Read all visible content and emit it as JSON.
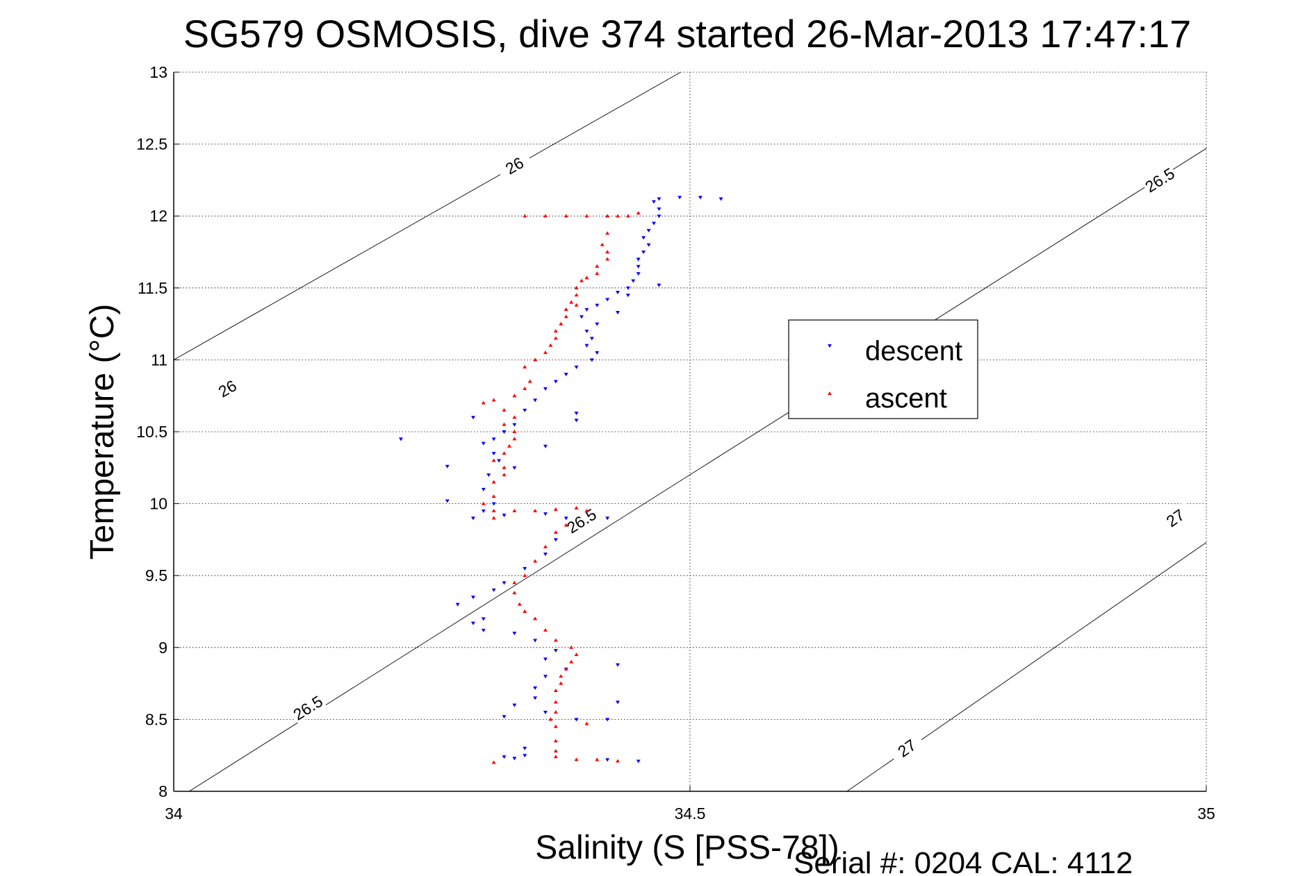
{
  "chart_data": {
    "type": "scatter",
    "title": "SG579 OSMOSIS, dive 374 started 26-Mar-2013 17:47:17",
    "xlabel": "Salinity (S [PSS-78])",
    "ylabel": "Temperature (°C)",
    "footer": "Serial #: 0204  CAL: 4112",
    "xlim": [
      34,
      35
    ],
    "ylim": [
      8,
      13
    ],
    "xticks": [
      "34",
      "34.5",
      "35"
    ],
    "xtick_values": [
      34,
      34.5,
      35
    ],
    "yticks": [
      "8",
      "8.5",
      "9",
      "9.5",
      "10",
      "10.5",
      "11",
      "11.5",
      "12",
      "12.5",
      "13"
    ],
    "ytick_values": [
      8,
      8.5,
      9,
      9.5,
      10,
      10.5,
      11,
      11.5,
      12,
      12.5,
      13
    ],
    "grid": true,
    "legend": {
      "placement": "center-right",
      "entries": [
        "descent",
        "ascent"
      ]
    },
    "density_contours": [
      {
        "label": "26",
        "points": [
          [
            34.0,
            11.0
          ],
          [
            34.491,
            13.0
          ]
        ],
        "label_at": [
          [
            34.33,
            12.35
          ],
          [
            34.052,
            10.8
          ]
        ]
      },
      {
        "label": "26.5",
        "points": [
          [
            34.015,
            8.0
          ],
          [
            35.0,
            12.47
          ]
        ],
        "label_at": [
          [
            34.13,
            8.58
          ],
          [
            34.395,
            9.88
          ],
          [
            34.955,
            12.25
          ]
        ]
      },
      {
        "label": "27",
        "points": [
          [
            34.652,
            8.0
          ],
          [
            35.0,
            9.73
          ]
        ],
        "label_at": [
          [
            34.71,
            8.3
          ],
          [
            34.97,
            9.9
          ]
        ]
      }
    ],
    "series": [
      {
        "name": "descent",
        "color": "#0000ff",
        "marker": "triangle-down",
        "points": [
          [
            34.53,
            12.12
          ],
          [
            34.51,
            12.13
          ],
          [
            34.49,
            12.13
          ],
          [
            34.47,
            12.12
          ],
          [
            34.465,
            12.1
          ],
          [
            34.47,
            12.05
          ],
          [
            34.47,
            12.0
          ],
          [
            34.465,
            11.95
          ],
          [
            34.46,
            11.9
          ],
          [
            34.455,
            11.85
          ],
          [
            34.46,
            11.8
          ],
          [
            34.455,
            11.75
          ],
          [
            34.45,
            11.7
          ],
          [
            34.45,
            11.65
          ],
          [
            34.45,
            11.6
          ],
          [
            34.445,
            11.55
          ],
          [
            34.47,
            11.52
          ],
          [
            34.44,
            11.5
          ],
          [
            34.43,
            11.47
          ],
          [
            34.44,
            11.45
          ],
          [
            34.42,
            11.42
          ],
          [
            34.41,
            11.38
          ],
          [
            34.4,
            11.35
          ],
          [
            34.43,
            11.33
          ],
          [
            34.395,
            11.3
          ],
          [
            34.41,
            11.25
          ],
          [
            34.4,
            11.2
          ],
          [
            34.405,
            11.15
          ],
          [
            34.4,
            11.1
          ],
          [
            34.41,
            11.05
          ],
          [
            34.405,
            11.0
          ],
          [
            34.39,
            10.95
          ],
          [
            34.38,
            10.9
          ],
          [
            34.37,
            10.85
          ],
          [
            34.36,
            10.8
          ],
          [
            34.35,
            10.72
          ],
          [
            34.34,
            10.65
          ],
          [
            34.39,
            10.58
          ],
          [
            34.33,
            10.55
          ],
          [
            34.32,
            10.5
          ],
          [
            34.31,
            10.45
          ],
          [
            34.3,
            10.42
          ],
          [
            34.36,
            10.4
          ],
          [
            34.31,
            10.35
          ],
          [
            34.315,
            10.3
          ],
          [
            34.33,
            10.25
          ],
          [
            34.305,
            10.2
          ],
          [
            34.3,
            10.1
          ],
          [
            34.31,
            10.0
          ],
          [
            34.3,
            9.95
          ],
          [
            34.32,
            9.92
          ],
          [
            34.29,
            9.9
          ],
          [
            34.36,
            9.93
          ],
          [
            34.38,
            9.9
          ],
          [
            34.42,
            9.9
          ],
          [
            34.37,
            9.75
          ],
          [
            34.36,
            9.65
          ],
          [
            34.34,
            9.55
          ],
          [
            34.32,
            9.45
          ],
          [
            34.31,
            9.4
          ],
          [
            34.29,
            9.35
          ],
          [
            34.3,
            9.2
          ],
          [
            34.29,
            9.17
          ],
          [
            34.3,
            9.12
          ],
          [
            34.33,
            9.1
          ],
          [
            34.35,
            9.05
          ],
          [
            34.37,
            8.98
          ],
          [
            34.36,
            8.92
          ],
          [
            34.43,
            8.88
          ],
          [
            34.38,
            8.85
          ],
          [
            34.36,
            8.8
          ],
          [
            34.35,
            8.72
          ],
          [
            34.35,
            8.65
          ],
          [
            34.33,
            8.6
          ],
          [
            34.43,
            8.62
          ],
          [
            34.36,
            8.55
          ],
          [
            34.32,
            8.52
          ],
          [
            34.39,
            8.5
          ],
          [
            34.42,
            8.5
          ],
          [
            34.34,
            8.3
          ],
          [
            34.34,
            8.25
          ],
          [
            34.33,
            8.23
          ],
          [
            34.32,
            8.24
          ],
          [
            34.42,
            8.22
          ],
          [
            34.45,
            8.21
          ],
          [
            34.22,
            10.45
          ],
          [
            34.265,
            10.26
          ],
          [
            34.265,
            10.02
          ],
          [
            34.275,
            9.3
          ],
          [
            34.29,
            10.6
          ],
          [
            34.39,
            10.63
          ]
        ]
      },
      {
        "name": "ascent",
        "color": "#ff0000",
        "marker": "triangle-up",
        "points": [
          [
            34.34,
            12.0
          ],
          [
            34.36,
            12.0
          ],
          [
            34.38,
            12.0
          ],
          [
            34.4,
            12.0
          ],
          [
            34.42,
            12.0
          ],
          [
            34.43,
            12.0
          ],
          [
            34.44,
            12.0
          ],
          [
            34.45,
            12.02
          ],
          [
            34.42,
            11.88
          ],
          [
            34.415,
            11.8
          ],
          [
            34.42,
            11.75
          ],
          [
            34.42,
            11.7
          ],
          [
            34.41,
            11.65
          ],
          [
            34.41,
            11.6
          ],
          [
            34.4,
            11.57
          ],
          [
            34.395,
            11.55
          ],
          [
            34.39,
            11.5
          ],
          [
            34.39,
            11.45
          ],
          [
            34.385,
            11.4
          ],
          [
            34.39,
            11.38
          ],
          [
            34.38,
            11.35
          ],
          [
            34.38,
            11.3
          ],
          [
            34.375,
            11.25
          ],
          [
            34.37,
            11.2
          ],
          [
            34.37,
            11.15
          ],
          [
            34.365,
            11.1
          ],
          [
            34.36,
            11.05
          ],
          [
            34.35,
            11.0
          ],
          [
            34.34,
            10.95
          ],
          [
            34.345,
            10.85
          ],
          [
            34.34,
            10.8
          ],
          [
            34.33,
            10.75
          ],
          [
            34.31,
            10.72
          ],
          [
            34.3,
            10.7
          ],
          [
            34.32,
            10.65
          ],
          [
            34.33,
            10.6
          ],
          [
            34.32,
            10.55
          ],
          [
            34.33,
            10.5
          ],
          [
            34.33,
            10.45
          ],
          [
            34.325,
            10.4
          ],
          [
            34.32,
            10.35
          ],
          [
            34.31,
            10.3
          ],
          [
            34.32,
            10.25
          ],
          [
            34.32,
            10.2
          ],
          [
            34.31,
            10.15
          ],
          [
            34.31,
            10.05
          ],
          [
            34.3,
            10.0
          ],
          [
            34.31,
            9.95
          ],
          [
            34.31,
            9.9
          ],
          [
            34.33,
            9.95
          ],
          [
            34.35,
            9.95
          ],
          [
            34.37,
            9.96
          ],
          [
            34.39,
            9.97
          ],
          [
            34.4,
            9.95
          ],
          [
            34.38,
            9.85
          ],
          [
            34.37,
            9.8
          ],
          [
            34.36,
            9.7
          ],
          [
            34.35,
            9.6
          ],
          [
            34.34,
            9.5
          ],
          [
            34.33,
            9.45
          ],
          [
            34.33,
            9.38
          ],
          [
            34.335,
            9.3
          ],
          [
            34.34,
            9.25
          ],
          [
            34.35,
            9.2
          ],
          [
            34.36,
            9.12
          ],
          [
            34.37,
            9.05
          ],
          [
            34.385,
            9.0
          ],
          [
            34.39,
            8.95
          ],
          [
            34.385,
            8.9
          ],
          [
            34.38,
            8.85
          ],
          [
            34.375,
            8.8
          ],
          [
            34.375,
            8.75
          ],
          [
            34.37,
            8.7
          ],
          [
            34.37,
            8.62
          ],
          [
            34.37,
            8.55
          ],
          [
            34.365,
            8.5
          ],
          [
            34.37,
            8.45
          ],
          [
            34.37,
            8.35
          ],
          [
            34.37,
            8.28
          ],
          [
            34.37,
            8.24
          ],
          [
            34.39,
            8.22
          ],
          [
            34.41,
            8.22
          ],
          [
            34.43,
            8.21
          ],
          [
            34.31,
            8.2
          ],
          [
            34.4,
            8.47
          ]
        ]
      }
    ]
  }
}
